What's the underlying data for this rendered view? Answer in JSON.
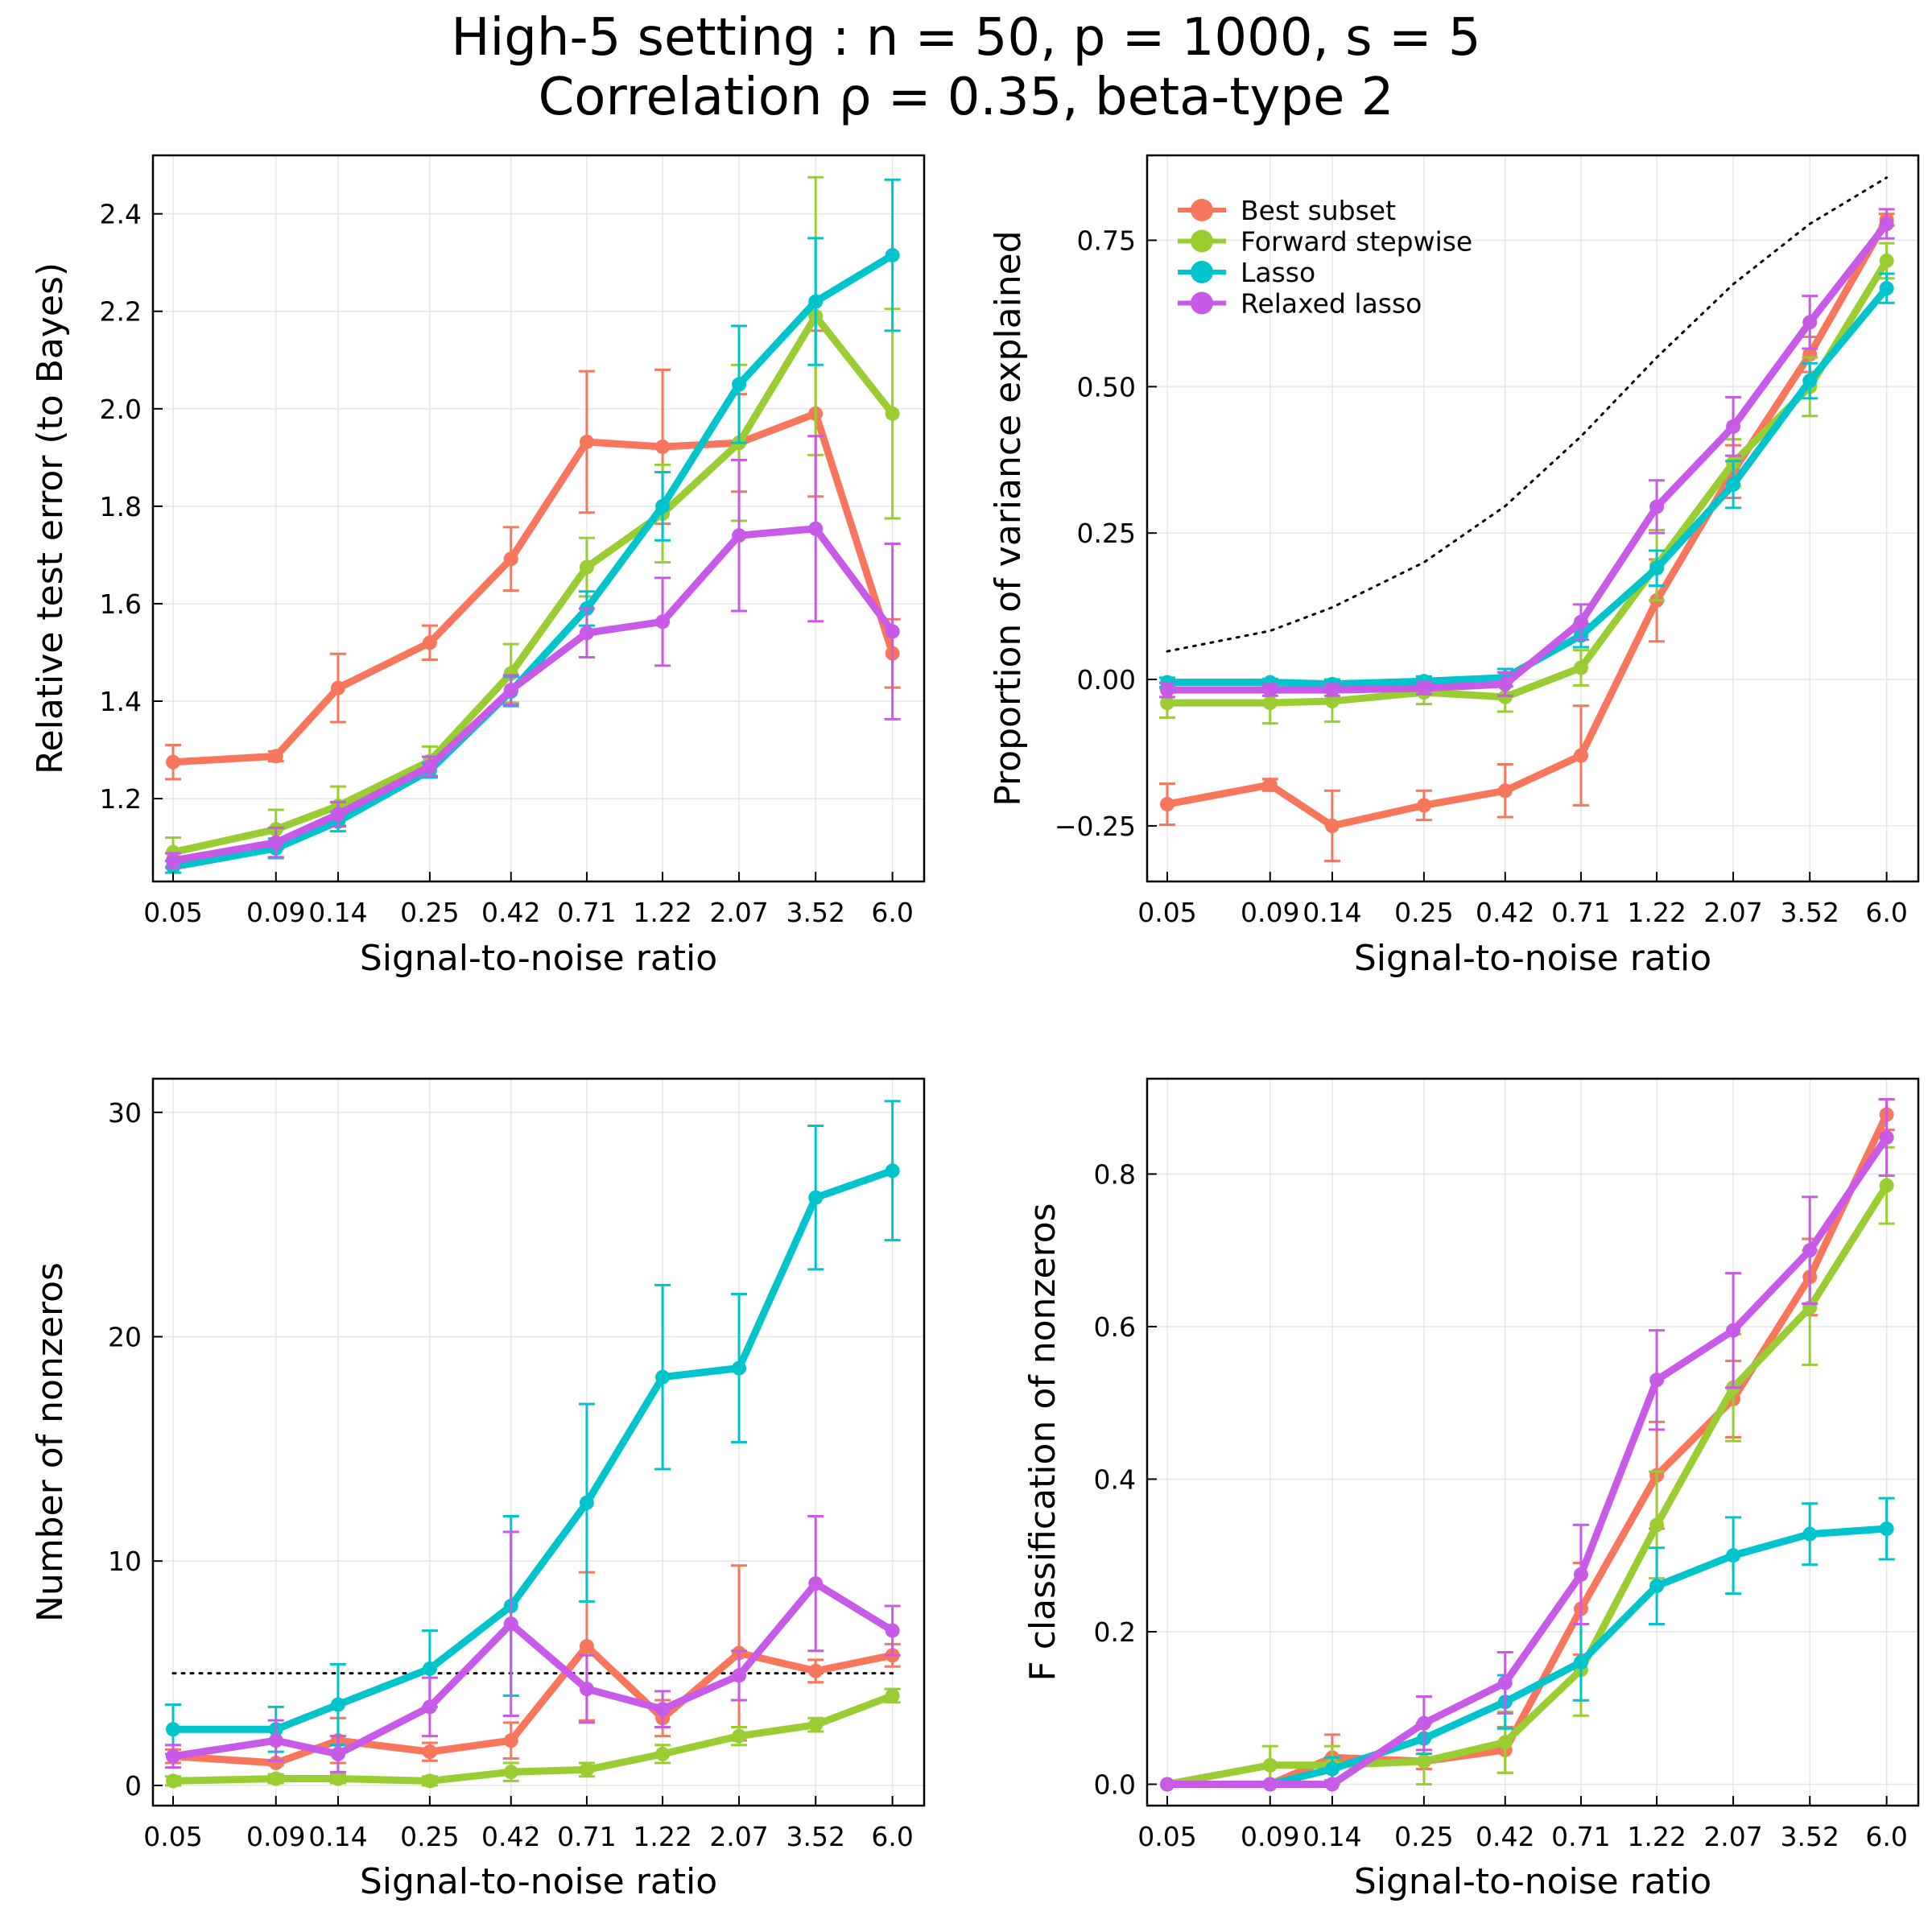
{
  "title": {
    "line1": "High-5 setting : n = 50, p = 1000, s = 5",
    "line2": "Correlation ρ = 0.35, beta-type 2"
  },
  "colors": {
    "Best subset": "#f8765c",
    "Forward stepwise": "#9acd32",
    "Lasso": "#00c4cc",
    "Relaxed lasso": "#c85ae8"
  },
  "chart_data": [
    {
      "id": "relative-test-error",
      "type": "line",
      "xlabel": "Signal-to-noise ratio",
      "ylabel": "Relative test error (to Bayes)",
      "categories": [
        "0.05",
        "0.09",
        "0.14",
        "0.25",
        "0.42",
        "0.71",
        "1.22",
        "2.07",
        "3.52",
        "6.0"
      ],
      "ylim": [
        1.03,
        2.52
      ],
      "yticks": [
        1.2,
        1.4,
        1.6,
        1.8,
        2.0,
        2.2,
        2.4
      ],
      "ytick_labels": [
        "1.2",
        "1.4",
        "1.6",
        "1.8",
        "2.0",
        "2.2",
        "2.4"
      ],
      "grid": true,
      "legend": false,
      "series": [
        {
          "name": "Best subset",
          "values": [
            1.275,
            1.287,
            1.427,
            1.52,
            1.692,
            1.932,
            1.922,
            1.93,
            1.99,
            1.498
          ],
          "err": [
            0.035,
            0.01,
            0.07,
            0.035,
            0.065,
            0.145,
            0.158,
            0.1,
            0.17,
            0.07
          ]
        },
        {
          "name": "Forward stepwise",
          "values": [
            1.09,
            1.137,
            1.185,
            1.277,
            1.457,
            1.675,
            1.785,
            1.93,
            2.19,
            1.99
          ],
          "err": [
            0.03,
            0.04,
            0.04,
            0.03,
            0.06,
            0.06,
            0.1,
            0.16,
            0.285,
            0.215
          ]
        },
        {
          "name": "Lasso",
          "values": [
            1.06,
            1.098,
            1.153,
            1.258,
            1.42,
            1.59,
            1.8,
            2.05,
            2.22,
            2.315
          ],
          "err": [
            0.012,
            0.02,
            0.02,
            0.015,
            0.03,
            0.035,
            0.07,
            0.12,
            0.13,
            0.155
          ]
        },
        {
          "name": "Relaxed lasso",
          "values": [
            1.073,
            1.11,
            1.168,
            1.266,
            1.423,
            1.54,
            1.563,
            1.74,
            1.754,
            1.543
          ],
          "err": [
            0.015,
            0.03,
            0.025,
            0.02,
            0.03,
            0.05,
            0.09,
            0.155,
            0.19,
            0.18
          ]
        }
      ]
    },
    {
      "id": "proportion-variance-explained",
      "type": "line",
      "xlabel": "Signal-to-noise ratio",
      "ylabel": "Proportion of variance explained",
      "categories": [
        "0.05",
        "0.09",
        "0.14",
        "0.25",
        "0.42",
        "0.71",
        "1.22",
        "2.07",
        "3.52",
        "6.0"
      ],
      "ylim": [
        -0.345,
        0.895
      ],
      "yticks": [
        -0.25,
        0.0,
        0.25,
        0.5,
        0.75
      ],
      "ytick_labels": [
        "−0.25",
        "0.00",
        "0.25",
        "0.50",
        "0.75"
      ],
      "grid": true,
      "legend": true,
      "legend_position": "top-left",
      "reference_line": {
        "style": "dotted",
        "values": [
          0.048,
          0.083,
          0.123,
          0.2,
          0.296,
          0.415,
          0.55,
          0.675,
          0.778,
          0.857
        ]
      },
      "series": [
        {
          "name": "Best subset",
          "values": [
            -0.213,
            -0.18,
            -0.25,
            -0.215,
            -0.19,
            -0.13,
            0.135,
            0.355,
            0.555,
            0.785
          ],
          "err": [
            0.035,
            0.01,
            0.06,
            0.025,
            0.045,
            0.085,
            0.07,
            0.045,
            0.03,
            0.01
          ]
        },
        {
          "name": "Forward stepwise",
          "values": [
            -0.04,
            -0.04,
            -0.037,
            -0.022,
            -0.03,
            0.02,
            0.195,
            0.37,
            0.5,
            0.715
          ],
          "err": [
            0.025,
            0.035,
            0.035,
            0.02,
            0.025,
            0.03,
            0.06,
            0.04,
            0.05,
            0.03
          ]
        },
        {
          "name": "Lasso",
          "values": [
            -0.005,
            -0.005,
            -0.008,
            -0.003,
            0.003,
            0.075,
            0.19,
            0.333,
            0.51,
            0.668
          ],
          "err": [
            0.008,
            0.006,
            0.008,
            0.008,
            0.015,
            0.02,
            0.03,
            0.04,
            0.03,
            0.025
          ]
        },
        {
          "name": "Relaxed lasso",
          "values": [
            -0.018,
            -0.018,
            -0.018,
            -0.015,
            -0.008,
            0.098,
            0.295,
            0.432,
            0.61,
            0.778
          ],
          "err": [
            0.012,
            0.01,
            0.01,
            0.01,
            0.02,
            0.03,
            0.045,
            0.05,
            0.045,
            0.025
          ]
        }
      ]
    },
    {
      "id": "number-of-nonzeros",
      "type": "line",
      "xlabel": "Signal-to-noise ratio",
      "ylabel": "Number of nonzeros",
      "categories": [
        "0.05",
        "0.09",
        "0.14",
        "0.25",
        "0.42",
        "0.71",
        "1.22",
        "2.07",
        "3.52",
        "6.0"
      ],
      "ylim": [
        -0.9,
        31.5
      ],
      "yticks": [
        0,
        10,
        20,
        30
      ],
      "ytick_labels": [
        "0",
        "10",
        "20",
        "30"
      ],
      "grid": true,
      "legend": false,
      "reference_line": {
        "style": "dotted",
        "values": [
          5,
          5,
          5,
          5,
          5,
          5,
          5,
          5,
          5,
          5
        ]
      },
      "series": [
        {
          "name": "Best subset",
          "values": [
            1.3,
            1.0,
            2.0,
            1.5,
            2.0,
            6.2,
            3.0,
            5.9,
            5.1,
            5.8
          ],
          "err": [
            0.3,
            0.1,
            1.0,
            0.4,
            0.8,
            3.3,
            0.8,
            3.9,
            0.5,
            0.5
          ]
        },
        {
          "name": "Forward stepwise",
          "values": [
            0.2,
            0.3,
            0.3,
            0.2,
            0.6,
            0.7,
            1.4,
            2.2,
            2.7,
            4.0
          ],
          "err": [
            0.2,
            0.2,
            0.2,
            0.2,
            0.4,
            0.3,
            0.4,
            0.4,
            0.3,
            0.3
          ]
        },
        {
          "name": "Lasso",
          "values": [
            2.5,
            2.5,
            3.6,
            5.2,
            8.0,
            12.6,
            18.2,
            18.6,
            26.2,
            27.4
          ],
          "err": [
            1.1,
            1.0,
            1.8,
            1.7,
            4.0,
            4.4,
            4.1,
            3.3,
            3.2,
            3.1
          ]
        },
        {
          "name": "Relaxed lasso",
          "values": [
            1.3,
            2.0,
            1.4,
            3.5,
            7.2,
            4.3,
            3.4,
            4.9,
            9.0,
            6.9
          ],
          "err": [
            0.5,
            0.9,
            0.8,
            1.3,
            4.1,
            1.5,
            0.8,
            1.1,
            3.0,
            1.1
          ]
        }
      ]
    },
    {
      "id": "f-classification-of-nonzeros",
      "type": "line",
      "xlabel": "Signal-to-noise ratio",
      "ylabel": "F classification of nonzeros",
      "categories": [
        "0.05",
        "0.09",
        "0.14",
        "0.25",
        "0.42",
        "0.71",
        "1.22",
        "2.07",
        "3.52",
        "6.0"
      ],
      "ylim": [
        -0.028,
        0.925
      ],
      "yticks": [
        0.0,
        0.2,
        0.4,
        0.6,
        0.8
      ],
      "ytick_labels": [
        "0.0",
        "0.2",
        "0.4",
        "0.6",
        "0.8"
      ],
      "grid": true,
      "legend": false,
      "series": [
        {
          "name": "Best subset",
          "values": [
            0,
            0,
            0.035,
            0.03,
            0.045,
            0.23,
            0.405,
            0.505,
            0.665,
            0.878
          ],
          "err": [
            0,
            0,
            0.03,
            0.01,
            0.03,
            0.06,
            0.07,
            0.05,
            0.05,
            0.02
          ]
        },
        {
          "name": "Forward stepwise",
          "values": [
            0,
            0.025,
            0.025,
            0.03,
            0.055,
            0.15,
            0.34,
            0.52,
            0.625,
            0.785
          ],
          "err": [
            0,
            0.025,
            0.025,
            0.03,
            0.04,
            0.06,
            0.07,
            0.07,
            0.075,
            0.05
          ]
        },
        {
          "name": "Lasso",
          "values": [
            0,
            0,
            0.02,
            0.06,
            0.108,
            0.16,
            0.26,
            0.3,
            0.328,
            0.335
          ],
          "err": [
            0,
            0,
            0.015,
            0.02,
            0.035,
            0.05,
            0.05,
            0.05,
            0.04,
            0.04
          ]
        },
        {
          "name": "Relaxed lasso",
          "values": [
            0,
            0,
            0,
            0.08,
            0.133,
            0.275,
            0.53,
            0.595,
            0.7,
            0.848
          ],
          "err": [
            0,
            0,
            0,
            0.035,
            0.04,
            0.065,
            0.065,
            0.075,
            0.07,
            0.05
          ]
        }
      ]
    }
  ]
}
